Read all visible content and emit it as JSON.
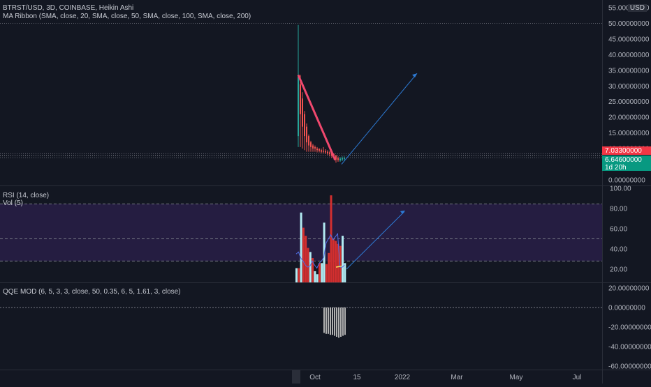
{
  "header": {
    "title": "BTRST/USD, 3D, COINBASE, Heikin Ashi",
    "indicator": "MA Ribbon (SMA, close, 20, SMA, close, 50, SMA, close, 100, SMA, close, 200)"
  },
  "rsi_legend": "RSI (14, close)",
  "vol_legend": "Vol (5)",
  "qqe_legend": "QQE MOD (6, 5, 3, 3, close, 50, 0.35, 6, 5, 1.61, 3, close)",
  "currency": "USD",
  "last_price": "7.03300000",
  "current_price": "6.64600000",
  "countdown": "1d 20h",
  "colors": {
    "background": "#131722",
    "bull": "#26a69a",
    "bear": "#ef5350",
    "trendline_down": "#f0486e",
    "trendline_up": "#2962ff",
    "rsi_band": "#2a1f4a",
    "hist": "#b0b0b0"
  },
  "chart_data": [
    {
      "type": "candlestick",
      "title": "BTRST/USD, 3D, COINBASE, Heikin Ashi",
      "y_ticks": [
        "55.00000000",
        "50.00000000",
        "45.00000000",
        "40.00000000",
        "35.00000000",
        "30.00000000",
        "25.00000000",
        "20.00000000",
        "15.00000000",
        "10.00000000",
        "5.00000000",
        "0.00000000"
      ],
      "ylim": [
        0,
        55
      ],
      "x_ticks": [
        "Oct",
        "15",
        "2022",
        "Mar",
        "May",
        "Jul"
      ],
      "candles": [
        {
          "o": 14.0,
          "h": 49.5,
          "l": 10.5,
          "c": 33.0,
          "bull": true
        },
        {
          "o": 30.5,
          "h": 33.5,
          "l": 10.5,
          "c": 21.0,
          "bull": false
        },
        {
          "o": 26.0,
          "h": 28.0,
          "l": 10.0,
          "c": 17.0,
          "bull": false
        },
        {
          "o": 21.0,
          "h": 22.0,
          "l": 9.5,
          "c": 14.0,
          "bull": false
        },
        {
          "o": 17.0,
          "h": 18.0,
          "l": 9.0,
          "c": 12.0,
          "bull": false
        },
        {
          "o": 14.0,
          "h": 14.5,
          "l": 9.0,
          "c": 11.0,
          "bull": false
        },
        {
          "o": 12.0,
          "h": 12.5,
          "l": 9.0,
          "c": 10.5,
          "bull": false
        },
        {
          "o": 11.0,
          "h": 11.5,
          "l": 9.0,
          "c": 10.0,
          "bull": false
        },
        {
          "o": 10.5,
          "h": 11.0,
          "l": 9.0,
          "c": 10.0,
          "bull": false
        },
        {
          "o": 10.0,
          "h": 10.5,
          "l": 8.8,
          "c": 9.5,
          "bull": false
        },
        {
          "o": 9.8,
          "h": 10.2,
          "l": 8.8,
          "c": 9.3,
          "bull": false
        },
        {
          "o": 9.5,
          "h": 10.0,
          "l": 8.5,
          "c": 9.0,
          "bull": false
        },
        {
          "o": 9.3,
          "h": 10.5,
          "l": 8.5,
          "c": 9.0,
          "bull": false
        },
        {
          "o": 9.2,
          "h": 9.8,
          "l": 8.3,
          "c": 8.8,
          "bull": false
        },
        {
          "o": 9.0,
          "h": 9.5,
          "l": 8.0,
          "c": 8.5,
          "bull": false
        },
        {
          "o": 8.8,
          "h": 9.2,
          "l": 7.5,
          "c": 8.2,
          "bull": false
        },
        {
          "o": 8.5,
          "h": 9.0,
          "l": 7.0,
          "c": 7.8,
          "bull": false
        },
        {
          "o": 8.2,
          "h": 8.5,
          "l": 6.5,
          "c": 7.2,
          "bull": false
        },
        {
          "o": 7.8,
          "h": 8.0,
          "l": 5.5,
          "c": 6.5,
          "bull": false
        },
        {
          "o": 7.0,
          "h": 7.5,
          "l": 5.8,
          "c": 6.3,
          "bull": false
        },
        {
          "o": 6.2,
          "h": 7.3,
          "l": 5.8,
          "c": 6.8,
          "bull": true
        },
        {
          "o": 6.5,
          "h": 7.5,
          "l": 6.0,
          "c": 7.0,
          "bull": true
        },
        {
          "o": 6.7,
          "h": 7.5,
          "l": 6.2,
          "c": 7.0,
          "bull": true
        }
      ],
      "last_price": 7.033,
      "current_price": 6.646,
      "trendlines": [
        {
          "name": "downtrend",
          "from": [
            0,
            33.5
          ],
          "to": [
            13,
            6.3
          ]
        },
        {
          "name": "projection",
          "from": [
            14,
            5.0
          ],
          "to": [
            38,
            34.0
          ]
        }
      ]
    },
    {
      "type": "bar",
      "title": "RSI (14, close)",
      "y_ticks": [
        "100.00",
        "80.00",
        "60.00",
        "40.00",
        "20.00"
      ],
      "ylim": [
        5,
        100
      ],
      "levels": [
        84.5,
        50,
        28
      ],
      "rsi_line": [
        35,
        37,
        31,
        28,
        24,
        22,
        23,
        28,
        24,
        21,
        26,
        28,
        32,
        46,
        50,
        54,
        49,
        52,
        55,
        22,
        22,
        24
      ],
      "volume_bars": [
        {
          "v": 21,
          "bull": true
        },
        {
          "v": 21,
          "bull": false
        },
        {
          "v": 76,
          "bull": true
        },
        {
          "v": 61,
          "bull": false
        },
        {
          "v": 53,
          "bull": false
        },
        {
          "v": 41,
          "bull": false
        },
        {
          "v": 37,
          "bull": true
        },
        {
          "v": 31,
          "bull": false
        },
        {
          "v": 18,
          "bull": true
        },
        {
          "v": 15,
          "bull": true
        },
        {
          "v": 26,
          "bull": false
        },
        {
          "v": 26,
          "bull": true
        },
        {
          "v": 66,
          "bull": true
        },
        {
          "v": 25,
          "bull": false
        },
        {
          "v": 36,
          "bull": false
        },
        {
          "v": 93,
          "bull": false
        },
        {
          "v": 50,
          "bull": false
        },
        {
          "v": 48,
          "bull": false
        },
        {
          "v": 45,
          "bull": false
        },
        {
          "v": 43,
          "bull": false
        },
        {
          "v": 53,
          "bull": true
        },
        {
          "v": 26,
          "bull": true
        }
      ],
      "projection": {
        "from": [
          19,
          20
        ],
        "to": [
          40,
          77
        ]
      }
    },
    {
      "type": "bar",
      "title": "QQE MOD (6, 5, 3, 3, close, 50, 0.35, 6, 5, 1.61, 3, close)",
      "y_ticks": [
        "20.00000000",
        "0.00000000",
        "-20.00000000",
        "-40.00000000",
        "-60.00000000"
      ],
      "ylim": [
        -68,
        25
      ],
      "zero_line": 0,
      "histogram": [
        -26,
        -27,
        -27,
        -28,
        -28,
        -29,
        -30,
        -31,
        -30,
        -29,
        -28
      ]
    }
  ]
}
